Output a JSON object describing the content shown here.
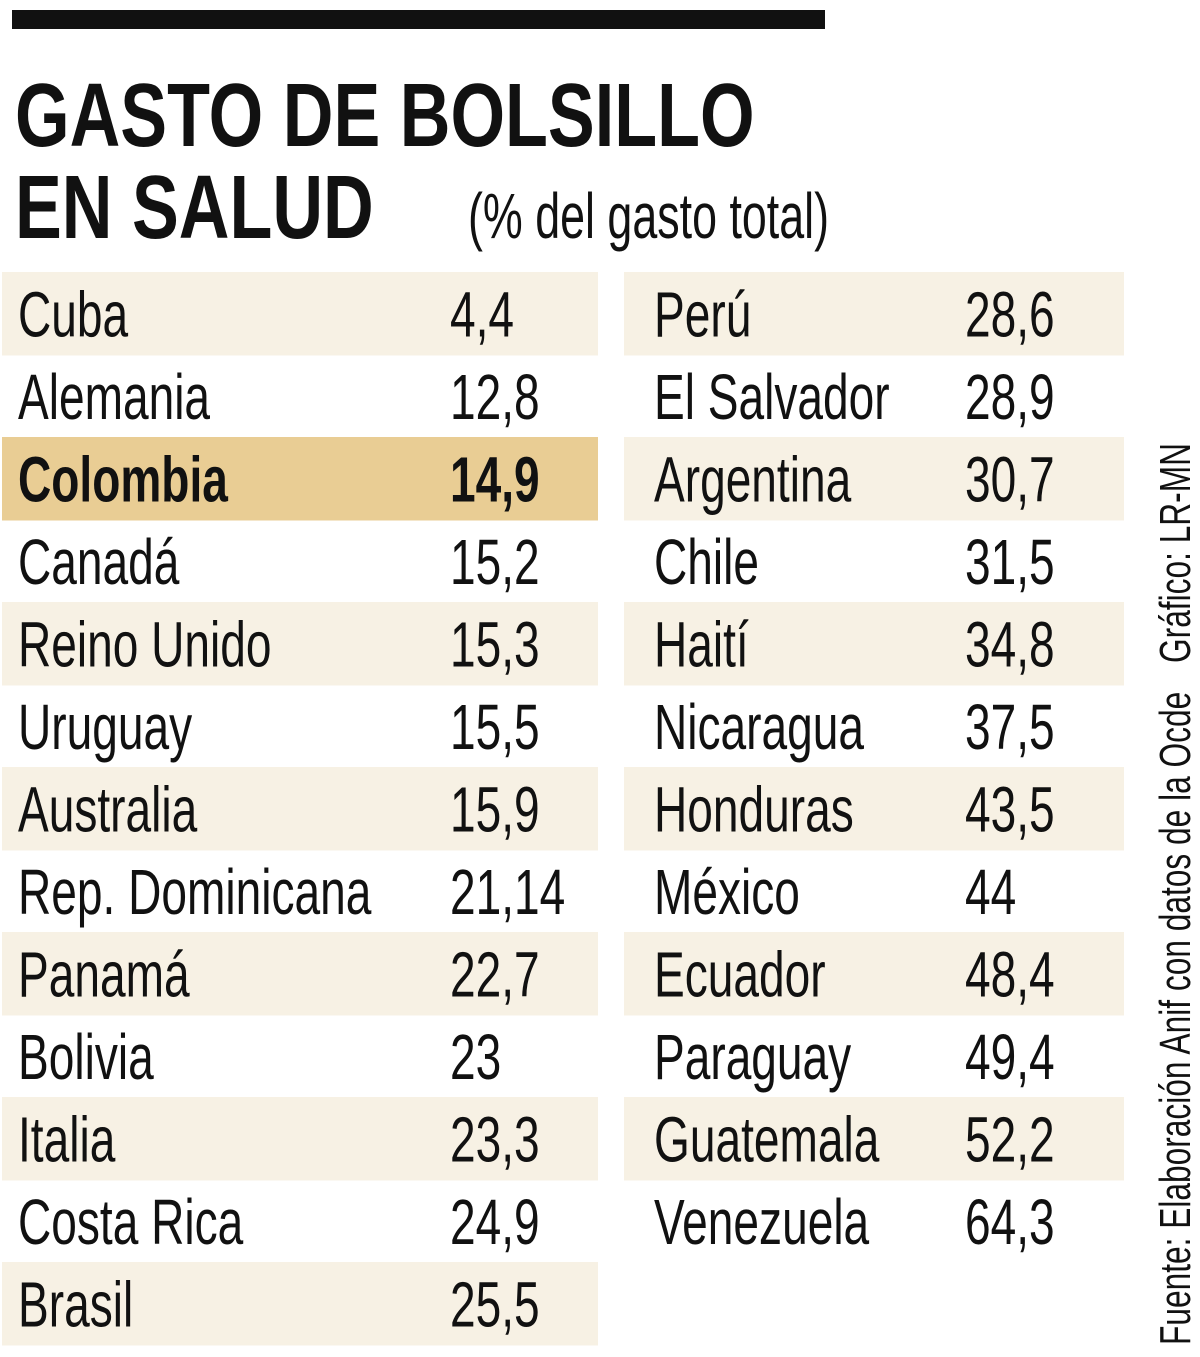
{
  "header": {
    "title_line1": "GASTO DE BOLSILLO",
    "title_line2": "EN SALUD",
    "subtitle": "(% del gasto total)"
  },
  "table": {
    "left": [
      [
        "Cuba",
        "4,4"
      ],
      [
        "Alemania",
        "12,8"
      ],
      [
        "Colombia",
        "14,9"
      ],
      [
        "Canadá",
        "15,2"
      ],
      [
        "Reino Unido",
        "15,3"
      ],
      [
        "Uruguay",
        "15,5"
      ],
      [
        "Australia",
        "15,9"
      ],
      [
        "Rep. Dominicana",
        "21,14"
      ],
      [
        "Panamá",
        "22,7"
      ],
      [
        "Bolivia",
        "23"
      ],
      [
        "Italia",
        "23,3"
      ],
      [
        "Costa Rica",
        "24,9"
      ],
      [
        "Brasil",
        "25,5"
      ]
    ],
    "right": [
      [
        "Perú",
        "28,6"
      ],
      [
        "El Salvador",
        "28,9"
      ],
      [
        "Argentina",
        "30,7"
      ],
      [
        "Chile",
        "31,5"
      ],
      [
        "Haití",
        "34,8"
      ],
      [
        "Nicaragua",
        "37,5"
      ],
      [
        "Honduras",
        "43,5"
      ],
      [
        "México",
        "44"
      ],
      [
        "Ecuador",
        "48,4"
      ],
      [
        "Paraguay",
        "49,4"
      ],
      [
        "Guatemala",
        "52,2"
      ],
      [
        "Venezuela",
        "64,3"
      ]
    ],
    "highlight": "Colombia"
  },
  "footer": {
    "source": "Fuente: Elaboración Anif con datos de la Ocde",
    "credit": "Gráfico: LR-MN"
  }
}
